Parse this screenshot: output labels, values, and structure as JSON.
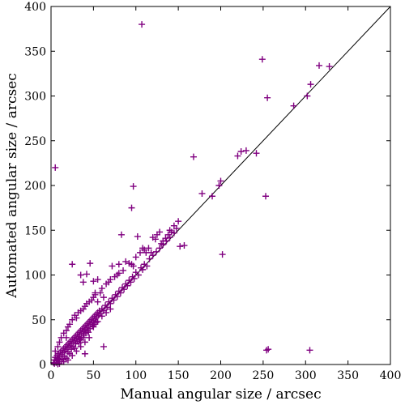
{
  "chart_data": {
    "type": "scatter",
    "title": "",
    "xlabel": "Manual angular size / arcsec",
    "ylabel": "Automated angular size / arcsec",
    "xlim": [
      0,
      400
    ],
    "ylim": [
      0,
      400
    ],
    "xticks": [
      "0",
      "50",
      "100",
      "150",
      "200",
      "250",
      "300",
      "350",
      "400"
    ],
    "yticks": [
      "0",
      "50",
      "100",
      "150",
      "200",
      "250",
      "300",
      "350",
      "400"
    ],
    "grid": false,
    "marker": "+",
    "marker_color": "#800080",
    "reference_line": {
      "x": [
        0,
        400
      ],
      "y": [
        0,
        400
      ],
      "color": "#000000"
    },
    "series": [
      {
        "points": [
          [
            3,
            2
          ],
          [
            4,
            5
          ],
          [
            5,
            8
          ],
          [
            6,
            4
          ],
          [
            7,
            10
          ],
          [
            8,
            6
          ],
          [
            9,
            12
          ],
          [
            10,
            9
          ],
          [
            11,
            14
          ],
          [
            12,
            11
          ],
          [
            13,
            16
          ],
          [
            14,
            13
          ],
          [
            15,
            18
          ],
          [
            16,
            15
          ],
          [
            17,
            20
          ],
          [
            18,
            17
          ],
          [
            19,
            22
          ],
          [
            20,
            19
          ],
          [
            21,
            24
          ],
          [
            22,
            21
          ],
          [
            23,
            26
          ],
          [
            24,
            23
          ],
          [
            25,
            28
          ],
          [
            26,
            25
          ],
          [
            27,
            30
          ],
          [
            28,
            27
          ],
          [
            29,
            32
          ],
          [
            30,
            29
          ],
          [
            31,
            34
          ],
          [
            32,
            31
          ],
          [
            33,
            36
          ],
          [
            34,
            33
          ],
          [
            35,
            38
          ],
          [
            36,
            35
          ],
          [
            37,
            40
          ],
          [
            38,
            37
          ],
          [
            39,
            42
          ],
          [
            40,
            39
          ],
          [
            41,
            44
          ],
          [
            42,
            41
          ],
          [
            43,
            46
          ],
          [
            44,
            43
          ],
          [
            45,
            48
          ],
          [
            46,
            45
          ],
          [
            47,
            50
          ],
          [
            48,
            47
          ],
          [
            49,
            52
          ],
          [
            50,
            49
          ],
          [
            51,
            54
          ],
          [
            52,
            51
          ],
          [
            53,
            56
          ],
          [
            54,
            53
          ],
          [
            55,
            58
          ],
          [
            56,
            55
          ],
          [
            57,
            60
          ],
          [
            58,
            57
          ],
          [
            60,
            62
          ],
          [
            62,
            60
          ],
          [
            64,
            66
          ],
          [
            66,
            64
          ],
          [
            68,
            70
          ],
          [
            70,
            68
          ],
          [
            72,
            74
          ],
          [
            74,
            72
          ],
          [
            76,
            78
          ],
          [
            78,
            76
          ],
          [
            80,
            82
          ],
          [
            82,
            80
          ],
          [
            84,
            86
          ],
          [
            86,
            84
          ],
          [
            88,
            90
          ],
          [
            90,
            88
          ],
          [
            92,
            94
          ],
          [
            94,
            92
          ],
          [
            96,
            98
          ],
          [
            98,
            96
          ],
          [
            100,
            103
          ],
          [
            103,
            100
          ],
          [
            106,
            108
          ],
          [
            108,
            106
          ],
          [
            110,
            112
          ],
          [
            113,
            110
          ],
          [
            116,
            118
          ],
          [
            120,
            122
          ],
          [
            124,
            126
          ],
          [
            128,
            130
          ],
          [
            132,
            134
          ],
          [
            136,
            138
          ],
          [
            140,
            142
          ],
          [
            145,
            147
          ],
          [
            5,
            15
          ],
          [
            8,
            20
          ],
          [
            10,
            25
          ],
          [
            12,
            30
          ],
          [
            15,
            35
          ],
          [
            18,
            38
          ],
          [
            20,
            42
          ],
          [
            22,
            45
          ],
          [
            25,
            50
          ],
          [
            28,
            55
          ],
          [
            30,
            52
          ],
          [
            32,
            58
          ],
          [
            35,
            60
          ],
          [
            38,
            62
          ],
          [
            40,
            65
          ],
          [
            42,
            68
          ],
          [
            45,
            70
          ],
          [
            48,
            72
          ],
          [
            50,
            75
          ],
          [
            52,
            78
          ],
          [
            55,
            70
          ],
          [
            58,
            80
          ],
          [
            60,
            85
          ],
          [
            65,
            90
          ],
          [
            68,
            92
          ],
          [
            70,
            95
          ],
          [
            75,
            98
          ],
          [
            78,
            100
          ],
          [
            80,
            102
          ],
          [
            85,
            105
          ],
          [
            20,
            5
          ],
          [
            25,
            10
          ],
          [
            30,
            15
          ],
          [
            35,
            20
          ],
          [
            40,
            25
          ],
          [
            45,
            30
          ],
          [
            15,
            3
          ],
          [
            10,
            1
          ],
          [
            8,
            0.5
          ],
          [
            18,
            7
          ],
          [
            22,
            12
          ],
          [
            28,
            18
          ],
          [
            33,
            24
          ],
          [
            38,
            30
          ],
          [
            44,
            36
          ],
          [
            50,
            42
          ],
          [
            55,
            48
          ],
          [
            60,
            54
          ],
          [
            65,
            58
          ],
          [
            70,
            62
          ],
          [
            4,
            1
          ],
          [
            6,
            2
          ],
          [
            9,
            3
          ],
          [
            12,
            5
          ],
          [
            14,
            6
          ],
          [
            16,
            9
          ],
          [
            20,
            14
          ],
          [
            24,
            17
          ],
          [
            26,
            20
          ],
          [
            29,
            23
          ],
          [
            31,
            26
          ],
          [
            34,
            28
          ],
          [
            36,
            30
          ],
          [
            39,
            33
          ],
          [
            41,
            35
          ],
          [
            43,
            38
          ],
          [
            46,
            40
          ],
          [
            49,
            43
          ],
          [
            51,
            45
          ],
          [
            53,
            47
          ],
          [
            25,
            112
          ],
          [
            42,
            101
          ],
          [
            46,
            113
          ],
          [
            35,
            100
          ],
          [
            38,
            92
          ],
          [
            52,
            80
          ],
          [
            50,
            93
          ],
          [
            55,
            95
          ],
          [
            60,
            62
          ],
          [
            62,
            75
          ],
          [
            72,
            110
          ],
          [
            80,
            112
          ],
          [
            83,
            145
          ],
          [
            88,
            115
          ],
          [
            92,
            113
          ],
          [
            95,
            112
          ],
          [
            97,
            110
          ],
          [
            100,
            120
          ],
          [
            102,
            143
          ],
          [
            105,
            125
          ],
          [
            108,
            130
          ],
          [
            110,
            128
          ],
          [
            112,
            125
          ],
          [
            115,
            130
          ],
          [
            118,
            125
          ],
          [
            120,
            142
          ],
          [
            123,
            140
          ],
          [
            125,
            145
          ],
          [
            128,
            148
          ],
          [
            130,
            135
          ],
          [
            132,
            138
          ],
          [
            135,
            141
          ],
          [
            138,
            145
          ],
          [
            140,
            150
          ],
          [
            142,
            148
          ],
          [
            145,
            155
          ],
          [
            148,
            152
          ],
          [
            150,
            160
          ],
          [
            152,
            132
          ],
          [
            157,
            133
          ],
          [
            95,
            175
          ],
          [
            97,
            199
          ],
          [
            107,
            380
          ],
          [
            5,
            220
          ],
          [
            168,
            232
          ],
          [
            178,
            191
          ],
          [
            190,
            188
          ],
          [
            198,
            200
          ],
          [
            200,
            205
          ],
          [
            202,
            123
          ],
          [
            220,
            233
          ],
          [
            224,
            238
          ],
          [
            230,
            239
          ],
          [
            242,
            236
          ],
          [
            249,
            341
          ],
          [
            253,
            188
          ],
          [
            255,
            298
          ],
          [
            254,
            16
          ],
          [
            256,
            17
          ],
          [
            305,
            16
          ],
          [
            286,
            289
          ],
          [
            302,
            300
          ],
          [
            306,
            313
          ],
          [
            316,
            334
          ],
          [
            328,
            333
          ],
          [
            9,
            7
          ],
          [
            35,
            28
          ],
          [
            62,
            20
          ],
          [
            40,
            12
          ],
          [
            18,
            30
          ]
        ]
      }
    ]
  }
}
